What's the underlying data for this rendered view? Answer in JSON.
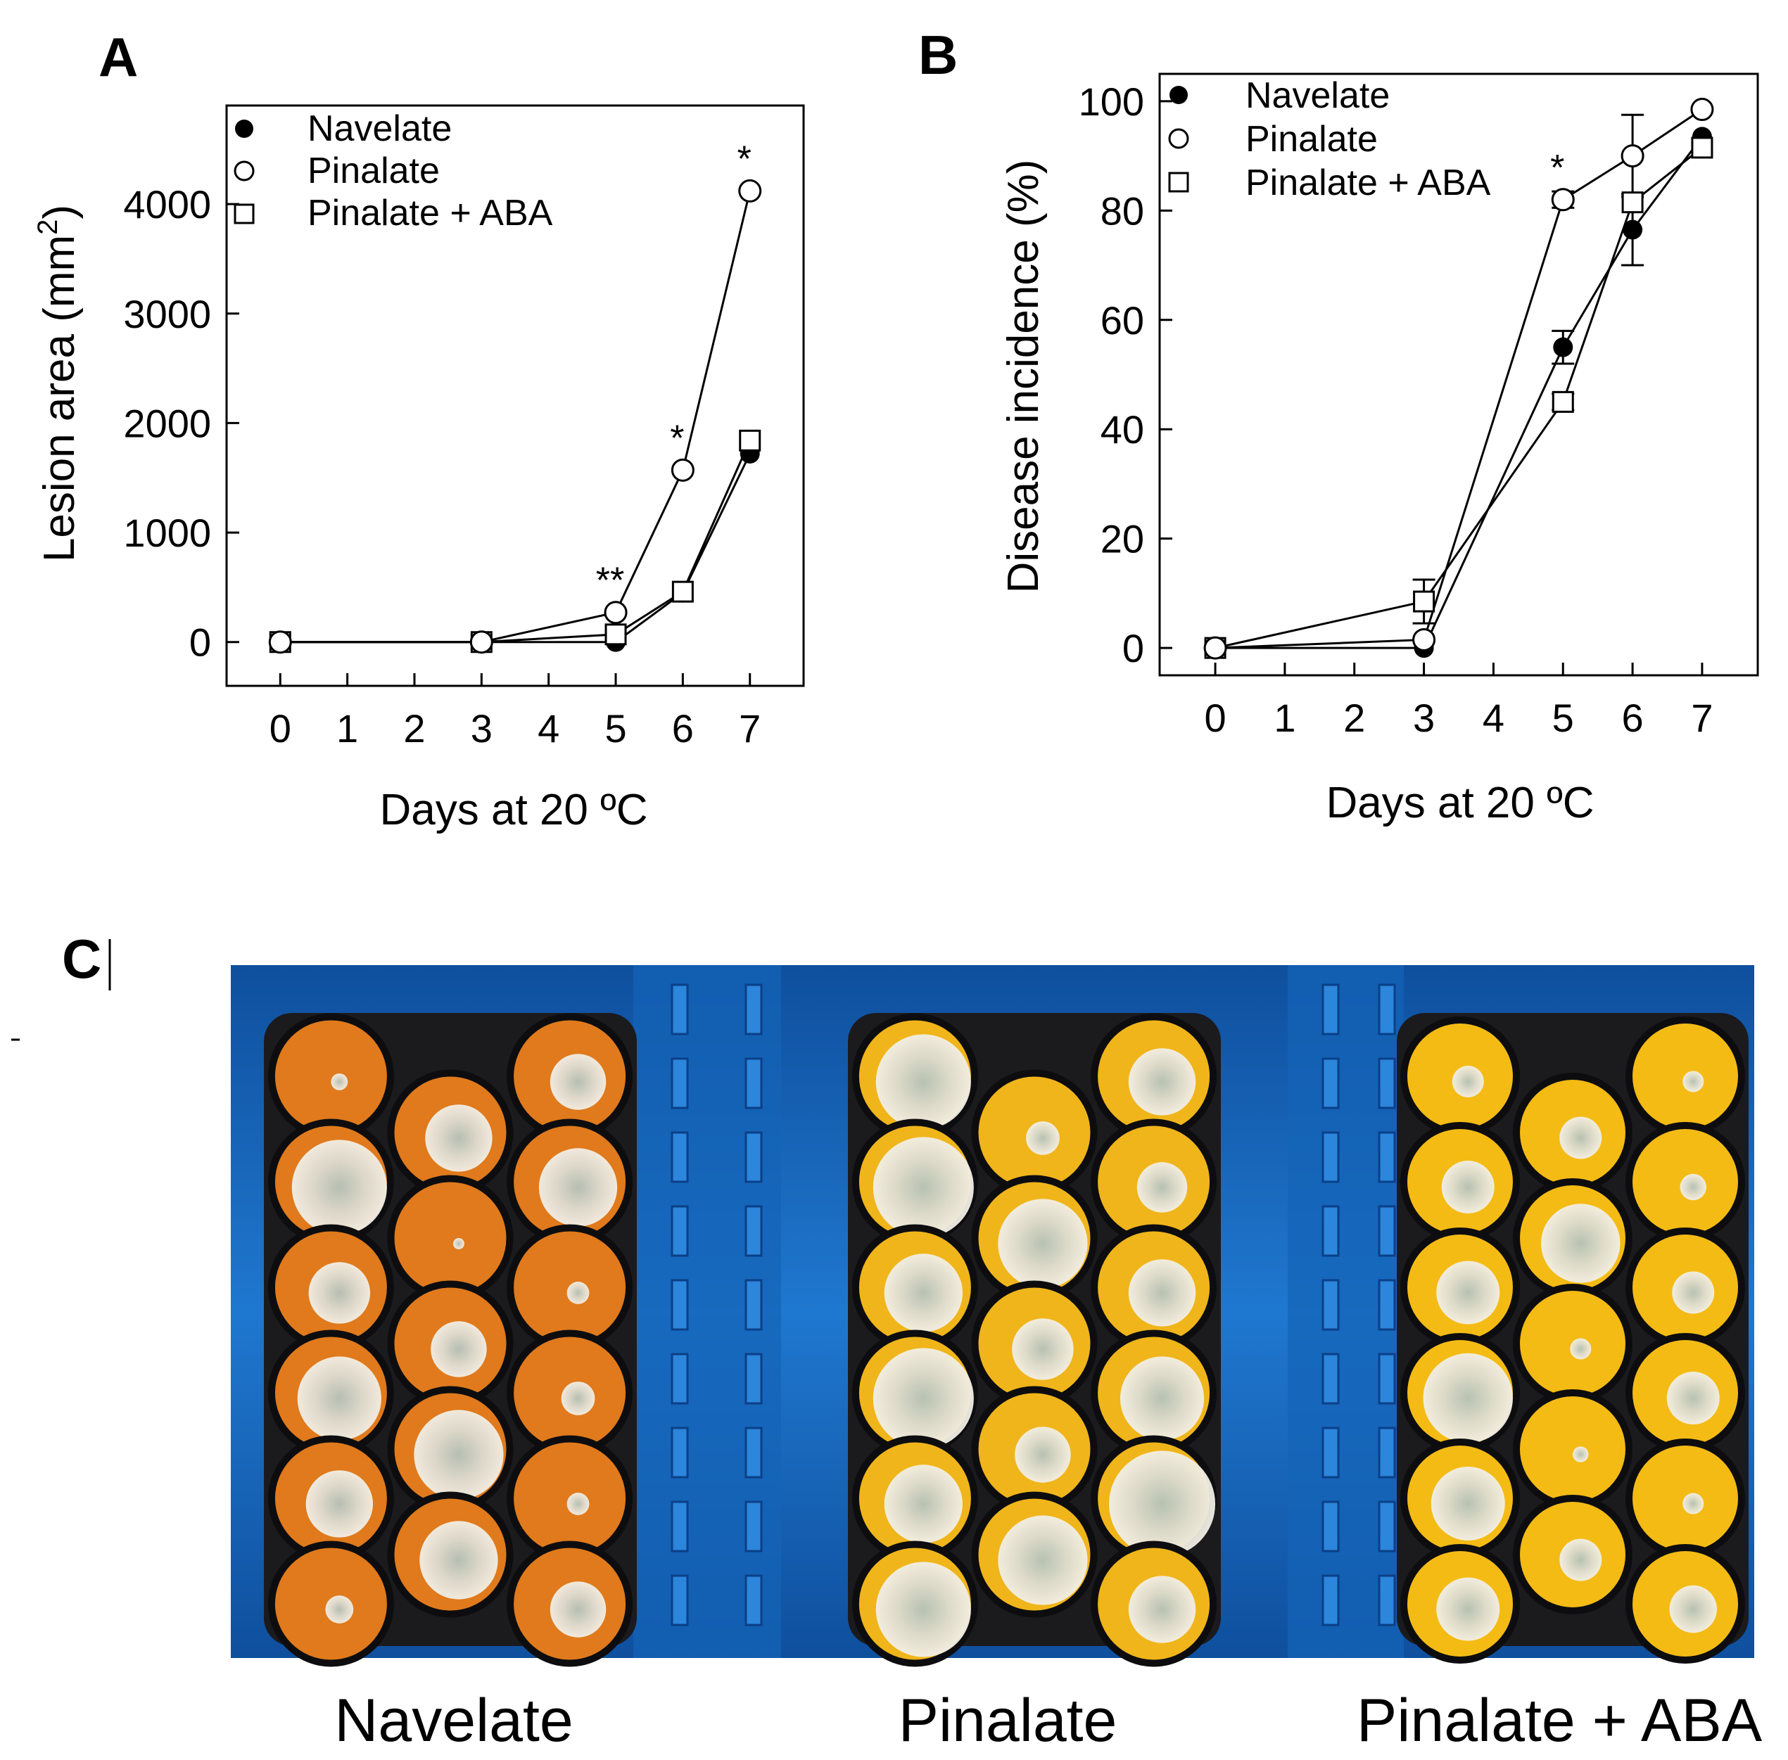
{
  "panels": {
    "a": "A",
    "b": "B",
    "c": "C"
  },
  "photo_captions": [
    "Navelate",
    "Pinalate",
    "Pinalate + ABA"
  ],
  "colors": {
    "tray_blue": "#1d6fc4",
    "tray_dark": "#0c3f86",
    "tray_black": "#1b1b1e",
    "navelate_orange": "#e07a1c",
    "pinalate_yellow": "#f0b51a",
    "aba_yellow": "#f4bb14",
    "mold_white": "#e9e6dc",
    "mold_green": "#9fb3a8"
  },
  "chart_data": [
    {
      "type": "line",
      "title": "",
      "xlabel": "Days at 20 ºC",
      "ylabel": "Lesion area (mm",
      "ylabel_sup": "2",
      "ylabel_close": ")",
      "x": [
        0,
        3,
        5,
        6,
        7
      ],
      "xticks": [
        "0",
        "1",
        "2",
        "3",
        "4",
        "5",
        "6",
        "7"
      ],
      "yticks": [
        "0",
        "1000",
        "2000",
        "3000",
        "4000"
      ],
      "xlim": [
        -0.8,
        7.8
      ],
      "ylim": [
        -400,
        4900
      ],
      "legend": "top-left",
      "series": [
        {
          "name": "Navelate",
          "marker": "filled-circle",
          "values": [
            0,
            0,
            0,
            450,
            1720
          ],
          "err": [
            0,
            0,
            0,
            0,
            0
          ]
        },
        {
          "name": "Pinalate",
          "marker": "open-circle",
          "values": [
            0,
            0,
            270,
            1570,
            4120
          ],
          "err": [
            0,
            0,
            0,
            0,
            0
          ]
        },
        {
          "name": "Pinalate + ABA",
          "marker": "open-square",
          "values": [
            0,
            0,
            70,
            460,
            1840
          ],
          "err": [
            0,
            0,
            0,
            0,
            0
          ]
        }
      ],
      "annotations": [
        {
          "x": 5,
          "y": 270,
          "text": "**"
        },
        {
          "x": 6,
          "y": 1570,
          "text": "*"
        },
        {
          "x": 7,
          "y": 4120,
          "text": "*"
        }
      ]
    },
    {
      "type": "line",
      "title": "",
      "xlabel": "Days at 20 ºC",
      "ylabel": "Disease incidence  (%)",
      "x": [
        0,
        3,
        5,
        6,
        7
      ],
      "xticks": [
        "0",
        "1",
        "2",
        "3",
        "4",
        "5",
        "6",
        "7"
      ],
      "yticks": [
        "0",
        "20",
        "40",
        "60",
        "80",
        "100"
      ],
      "xlim": [
        -0.8,
        7.8
      ],
      "ylim": [
        -5,
        105
      ],
      "legend": "top-left",
      "series": [
        {
          "name": "Navelate",
          "marker": "filled-circle",
          "values": [
            0,
            0,
            55,
            76.5,
            93.5
          ],
          "err": [
            0,
            0,
            3,
            6.5,
            0
          ]
        },
        {
          "name": "Pinalate",
          "marker": "open-circle",
          "values": [
            0,
            1.5,
            82,
            90,
            98.5
          ],
          "err": [
            0,
            0,
            1.5,
            7.5,
            0
          ]
        },
        {
          "name": "Pinalate + ABA",
          "marker": "open-square",
          "values": [
            0,
            8.5,
            45,
            81.5,
            91.5
          ],
          "err": [
            0,
            4,
            1.5,
            0,
            0
          ]
        }
      ],
      "annotations": [
        {
          "x": 5,
          "y": 82,
          "text": "*"
        }
      ]
    }
  ]
}
